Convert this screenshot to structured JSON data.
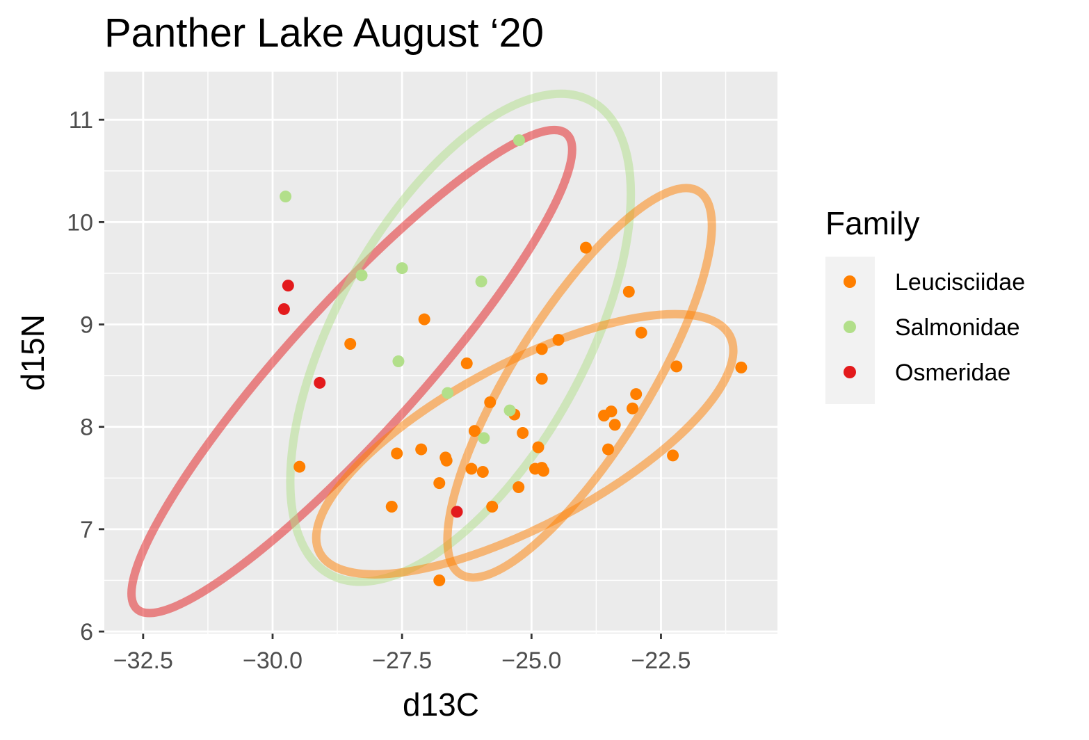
{
  "chart_data": {
    "type": "scatter",
    "title": "Panther Lake August ‘20",
    "xlabel": "d13C",
    "ylabel": "d15N",
    "xlim": [
      -33.25,
      -20.25
    ],
    "ylim": [
      5.98,
      11.47
    ],
    "x_ticks": [
      -32.5,
      -30.0,
      -27.5,
      -25.0,
      -22.5
    ],
    "x_tick_labels": [
      "−32.5",
      "−30.0",
      "−27.5",
      "−25.0",
      "−22.5"
    ],
    "y_ticks": [
      6,
      7,
      8,
      9,
      10,
      11
    ],
    "y_tick_labels": [
      "6",
      "7",
      "8",
      "9",
      "10",
      "11"
    ],
    "grid": true,
    "legend": {
      "title": "Family",
      "position": "right"
    },
    "series": [
      {
        "name": "Leucisciidae",
        "color": "#ff7f00",
        "points": [
          [
            -29.48,
            7.61
          ],
          [
            -28.5,
            8.81
          ],
          [
            -27.7,
            7.22
          ],
          [
            -27.6,
            7.74
          ],
          [
            -27.07,
            9.05
          ],
          [
            -27.13,
            7.78
          ],
          [
            -26.78,
            7.45
          ],
          [
            -26.66,
            7.7
          ],
          [
            -26.64,
            7.67
          ],
          [
            -26.78,
            6.5
          ],
          [
            -26.25,
            8.62
          ],
          [
            -26.16,
            7.59
          ],
          [
            -26.1,
            7.96
          ],
          [
            -25.94,
            7.56
          ],
          [
            -25.8,
            8.24
          ],
          [
            -25.76,
            7.22
          ],
          [
            -25.33,
            8.12
          ],
          [
            -25.25,
            7.41
          ],
          [
            -25.17,
            7.94
          ],
          [
            -24.93,
            7.59
          ],
          [
            -24.87,
            7.8
          ],
          [
            -24.8,
            7.6
          ],
          [
            -24.77,
            7.57
          ],
          [
            -24.8,
            8.76
          ],
          [
            -24.8,
            8.47
          ],
          [
            -24.48,
            8.85
          ],
          [
            -23.95,
            9.75
          ],
          [
            -23.6,
            8.11
          ],
          [
            -23.52,
            7.78
          ],
          [
            -23.46,
            8.15
          ],
          [
            -23.39,
            8.02
          ],
          [
            -23.12,
            9.32
          ],
          [
            -23.05,
            8.18
          ],
          [
            -22.98,
            8.32
          ],
          [
            -22.88,
            8.92
          ],
          [
            -22.27,
            7.72
          ],
          [
            -22.2,
            8.59
          ],
          [
            -20.95,
            8.58
          ]
        ]
      },
      {
        "name": "Salmonidae",
        "color": "#b2df8a",
        "points": [
          [
            -29.75,
            10.25
          ],
          [
            -28.28,
            9.48
          ],
          [
            -27.5,
            9.55
          ],
          [
            -27.57,
            8.64
          ],
          [
            -26.62,
            8.33
          ],
          [
            -25.97,
            9.42
          ],
          [
            -25.92,
            7.89
          ],
          [
            -25.42,
            8.16
          ],
          [
            -25.24,
            10.8
          ]
        ]
      },
      {
        "name": "Osmeridae",
        "color": "#e31a1c",
        "points": [
          [
            -29.78,
            9.15
          ],
          [
            -29.7,
            9.38
          ],
          [
            -29.09,
            8.43
          ],
          [
            -26.44,
            7.17
          ]
        ]
      }
    ],
    "ellipses": [
      {
        "series": "Osmeridae",
        "color": "#e31a1c",
        "center": [
          -28.47,
          8.54
        ],
        "semi_axis_x_range": 4.15,
        "semi_axis_y_range": 2.32
      },
      {
        "series": "Salmonidae",
        "color": "#b2df8a",
        "center": [
          -26.37,
          8.87
        ],
        "semi_axis_x_range": 2.53,
        "semi_axis_y_range": 2.31
      },
      {
        "series": "Leucisciidae",
        "color": "#ff7f00",
        "center": [
          -24.07,
          8.43
        ],
        "semi_axis_x_range": 2.3,
        "semi_axis_y_range": 1.87
      },
      {
        "series": "Leucisciidae",
        "color": "#ff7f00",
        "center": [
          -25.13,
          7.83
        ],
        "semi_axis_x_range": 3.96,
        "semi_axis_y_range": 1.06
      }
    ]
  }
}
